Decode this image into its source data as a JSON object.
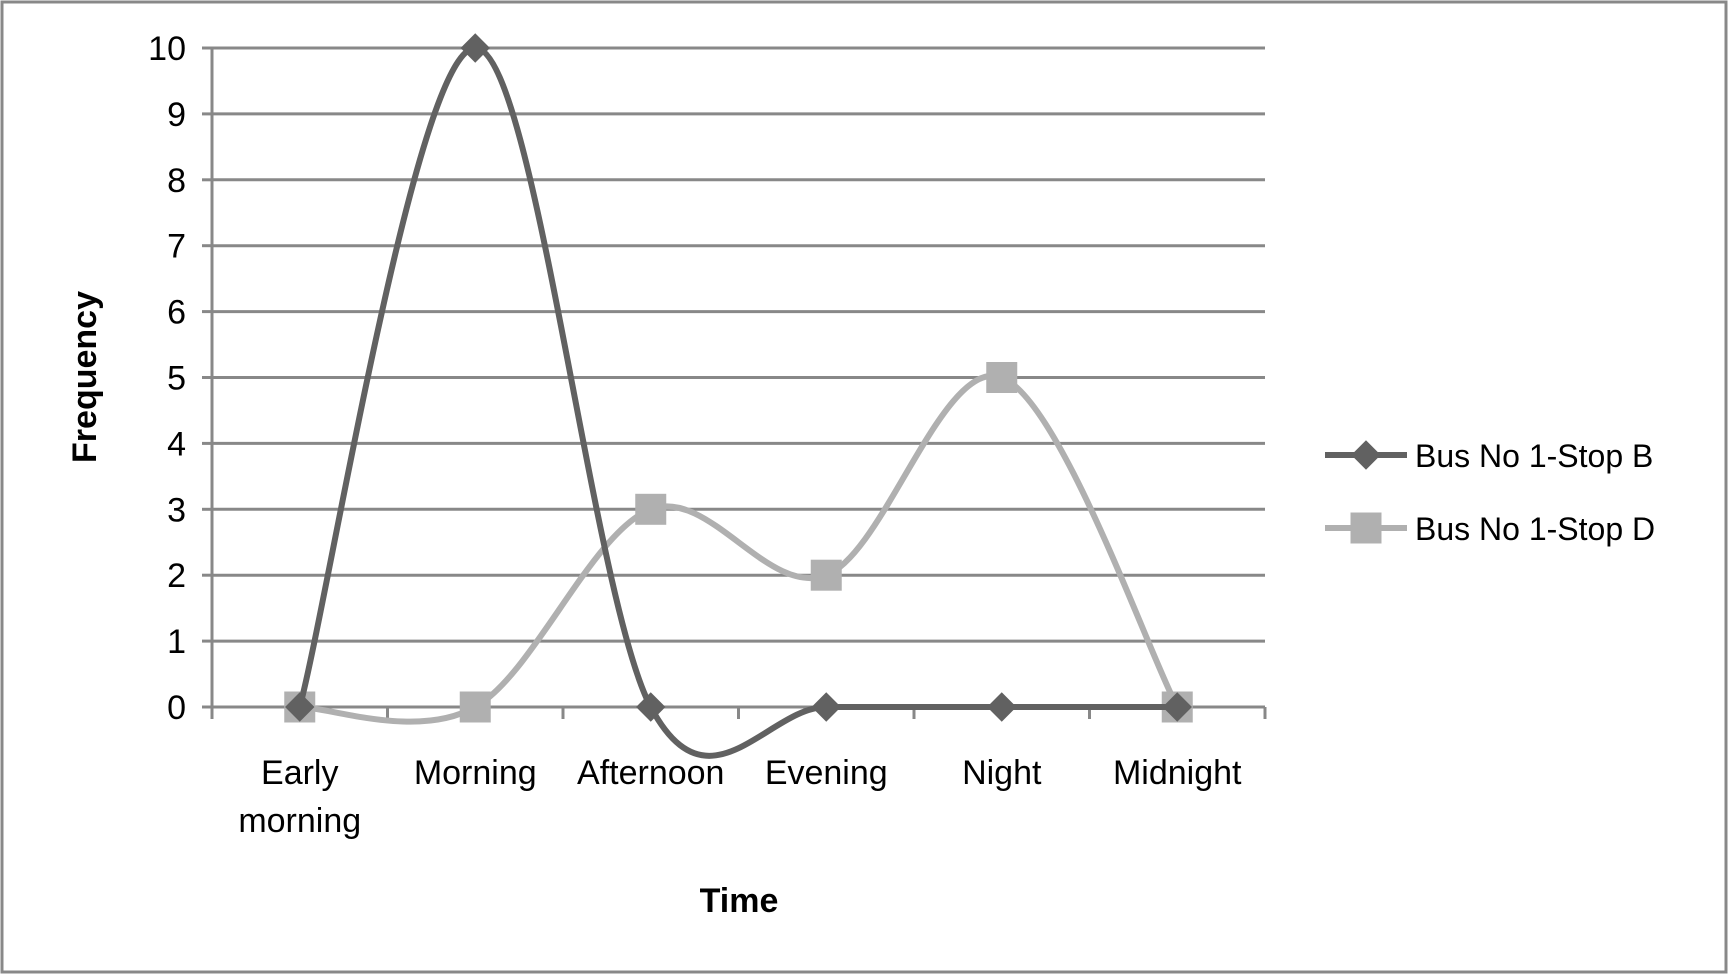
{
  "chart_data": {
    "type": "line",
    "smooth": true,
    "title": "",
    "xlabel": "Time",
    "ylabel": "Frequency",
    "categories": [
      [
        "Early",
        "morning"
      ],
      [
        "Morning"
      ],
      [
        "Afternoon"
      ],
      [
        "Evening"
      ],
      [
        "Night"
      ],
      [
        "Midnight"
      ]
    ],
    "ylim": [
      0,
      10
    ],
    "yticks": [
      "0",
      "1",
      "2",
      "3",
      "4",
      "5",
      "6",
      "7",
      "8",
      "9",
      "10"
    ],
    "grid": true,
    "legend_position": "right",
    "series": [
      {
        "name": "Bus No 1-Stop B",
        "marker": "diamond",
        "color": "#616161",
        "values": [
          0,
          10,
          0,
          0,
          0,
          0
        ]
      },
      {
        "name": "Bus No 1-Stop D",
        "marker": "square",
        "color": "#b0b0b0",
        "values": [
          0,
          0,
          3,
          2,
          5,
          0
        ]
      }
    ],
    "colors": {
      "gridline": "#888888",
      "axis": "#888888",
      "frame": "#888888"
    }
  }
}
